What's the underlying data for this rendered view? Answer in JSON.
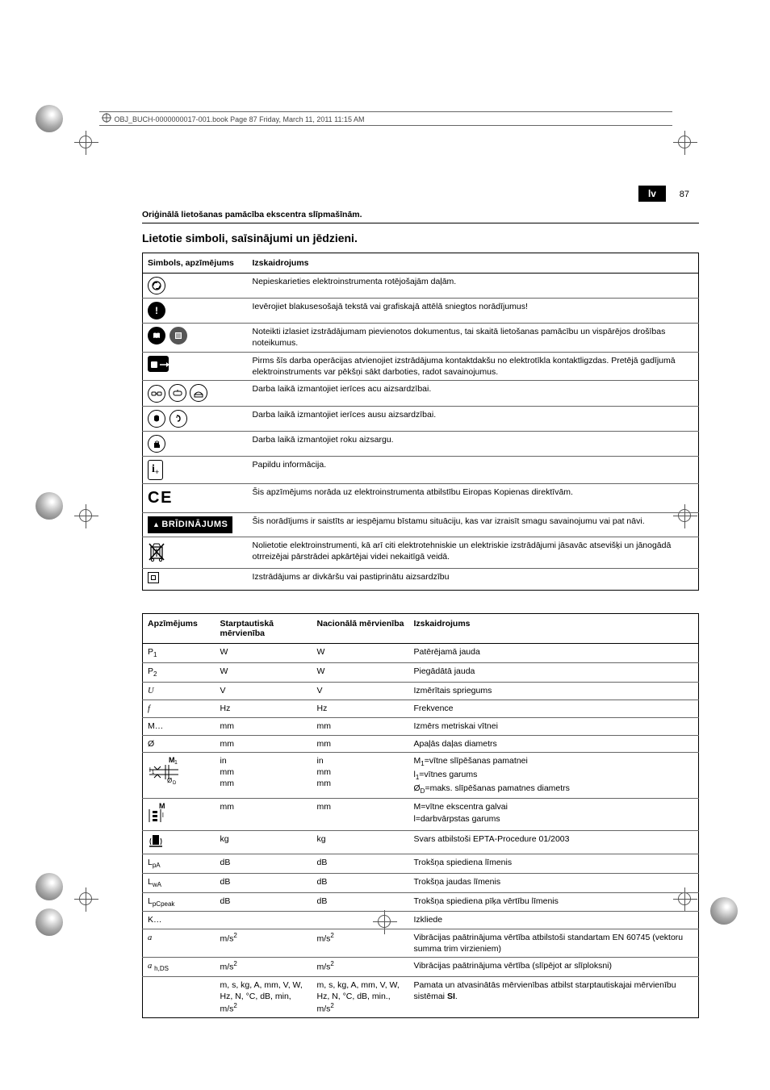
{
  "meta": {
    "header_line": "OBJ_BUCH-0000000017-001.book  Page 87  Friday, March 11, 2011  11:15 AM",
    "lang_code": "lv",
    "page_number": "87",
    "subtitle": "Oriģinālā lietošanas pamācība ekscentra slīpmašīnām.",
    "section_title": "Lietotie simboli, saīsinājumi un jēdzieni."
  },
  "table1": {
    "headers": {
      "col1": "Simbols, apzīmējums",
      "col2": "Izskaidrojums"
    },
    "rows": [
      {
        "desc": "Nepieskarieties elektroinstrumenta rotējošajām daļām."
      },
      {
        "desc": "Ievērojiet blakusesošajā tekstā vai grafiskajā attēlā sniegtos norādījumus!"
      },
      {
        "desc": "Noteikti izlasiet izstrādājumam pievienotos dokumentus, tai skaitā lietošanas pamācību un vispārējos drošības noteikumus."
      },
      {
        "desc": "Pirms šīs darba operācijas atvienojiet izstrādājuma kontaktdakšu no elektrotīkla kontaktligzdas. Pretējā gadījumā elektroinstruments var pēkšņi sākt darboties, radot savainojumus."
      },
      {
        "desc": "Darba laikā izmantojiet ierīces acu aizsardzībai."
      },
      {
        "desc": "Darba laikā izmantojiet ierīces ausu aizsardzībai."
      },
      {
        "desc": "Darba laikā izmantojiet roku aizsargu."
      },
      {
        "desc": "Papildu informācija."
      },
      {
        "desc": "Šis apzīmējums norāda uz elektroinstrumenta atbilstību Eiropas Kopienas direktīvām."
      },
      {
        "warning_label": "BRĪDINĀJUMS",
        "desc": "Šis norādījums ir saistīts ar iespējamu bīstamu situāciju, kas var izraisīt smagu savainojumu vai pat nāvi."
      },
      {
        "desc": "Nolietotie elektroinstrumenti, kā arī citi elektrotehniskie un elektriskie izstrādājumi jāsavāc atsevišķi un jānogādā otrreizējai pārstrādei apkārtējai videi nekaitīgā veidā."
      },
      {
        "desc": "Izstrādājums ar divkāršu vai pastiprinātu aizsardzību"
      }
    ]
  },
  "table2": {
    "headers": {
      "col1": "Apzīmējums",
      "col2": "Starptautiskā mērvienība",
      "col3": "Nacionālā mērvienība",
      "col4": "Izskaidrojums"
    },
    "rows": [
      {
        "sym_html": "P<sub>1</sub>",
        "intl": "W",
        "nat": "W",
        "desc": "Patērējamā jauda"
      },
      {
        "sym_html": "P<sub>2</sub>",
        "intl": "W",
        "nat": "W",
        "desc": "Piegādātā jauda"
      },
      {
        "sym_html": "<span class='ital'>U</span>",
        "intl": "V",
        "nat": "V",
        "desc": "Izmērītais spriegums"
      },
      {
        "sym_html": "<span class='ital'>f</span>",
        "intl": "Hz",
        "nat": "Hz",
        "desc": "Frekvence"
      },
      {
        "sym_html": "M…",
        "intl": "mm",
        "nat": "mm",
        "desc": "Izmērs metriskai vītnei"
      },
      {
        "sym_html": "Ø",
        "intl": "mm",
        "nat": "mm",
        "desc": "Apaļās daļas diametrs"
      },
      {
        "sym_html": "<svg width='44' height='36'><text x='26' y='9' font-size='9' font-weight='bold'>M</text><text x='33' y='11' font-size='7'>1</text><line x1='2' y1='18' x2='38' y2='18' stroke='#000'/><line x1='2' y1='24' x2='38' y2='24' stroke='#000'/><line x1='22' y1='12' x2='22' y2='30' stroke='#000'/><line x1='26' y1='12' x2='26' y2='30' stroke='#000'/><text x='2' y='21' font-size='8'>l</text><text x='5' y='23' font-size='6'>1</text><text x='24' y='34' font-size='8'>Ø</text><text x='31' y='36' font-size='6'>D</text><polyline points='8,14 12,18 16,14' fill='none' stroke='#000'/><polyline points='8,28 12,24 16,28' fill='none' stroke='#000'/></svg>",
        "intl": "in<br>mm<br>mm",
        "nat": "in<br>mm<br>mm",
        "desc": "M<sub>1</sub>=vītne slīpēšanas pamatnei<br>l<sub>1</sub>=vītnes garums<br>Ø<sub>D</sub>=maks. slīpēšanas pamatnes diametrs"
      },
      {
        "sym_html": "<svg width='40' height='28'><text x='14' y='9' font-size='9' font-weight='bold'>M</text><rect x='6' y='12' width='6' height='3' fill='#000'/><rect x='6' y='17' width='6' height='3' fill='#000'/><rect x='6' y='22' width='6' height='3' fill='#000'/><line x1='2' y1='10' x2='2' y2='26' stroke='#000'/><line x1='16' y1='10' x2='16' y2='26' stroke='#000'/><text x='18' y='20' font-size='8'>l</text></svg>",
        "intl": "mm",
        "nat": "mm",
        "desc": "M=vītne ekscentra galvai<br>l=darbvārpstas garums"
      },
      {
        "sym_html": "<svg width='20' height='18'><rect x='6' y='2' width='8' height='12' fill='#000'/><path d='M4,6 Q2,10 4,14' fill='none' stroke='#000'/><path d='M16,6 Q18,10 16,14' fill='none' stroke='#000'/><line x1='2' y1='16' x2='18' y2='16' stroke='#000' stroke-width='1.5'/></svg>",
        "intl": "kg",
        "nat": "kg",
        "desc": "Svars atbilstoši EPTA-Procedure 01/2003"
      },
      {
        "sym_html": "L<sub>pA</sub>",
        "intl": "dB",
        "nat": "dB",
        "desc": "Trokšņa spiediena līmenis"
      },
      {
        "sym_html": "L<sub>wA</sub>",
        "intl": "dB",
        "nat": "dB",
        "desc": "Trokšņa jaudas līmenis"
      },
      {
        "sym_html": "L<sub>pCpeak</sub>",
        "intl": "dB",
        "nat": "dB",
        "desc": "Trokšņa spiediena pīķa vērtību līmenis"
      },
      {
        "sym_html": "K…",
        "intl": "",
        "nat": "",
        "desc": "Izkliede"
      },
      {
        "sym_html": "<span class='ital'>a</span>",
        "intl": "m/s<sup>2</sup>",
        "nat": "m/s<sup>2</sup>",
        "desc": "Vibrācijas paātrinājuma vērtība atbilstoši standartam EN 60745 (vektoru summa trim virzieniem)"
      },
      {
        "sym_html": "<span class='ital'>a</span> <sub>h,DS</sub>",
        "intl": "m/s<sup>2</sup>",
        "nat": "m/s<sup>2</sup>",
        "desc": "Vibrācijas paātrinājuma vērtība (slīpējot ar slīploksni)"
      },
      {
        "sym_html": "",
        "intl": "m, s, kg, A, mm, V, W, Hz, N, °C, dB, min, m/s<sup>2</sup>",
        "nat": "m, s, kg, A, mm, V, W, Hz, N, °C, dB, min., m/s<sup>2</sup>",
        "desc": "Pamata un atvasinātās mērvienības atbilst starptautiskajai mērvienību sistēmai <b>SI</b>."
      }
    ]
  }
}
